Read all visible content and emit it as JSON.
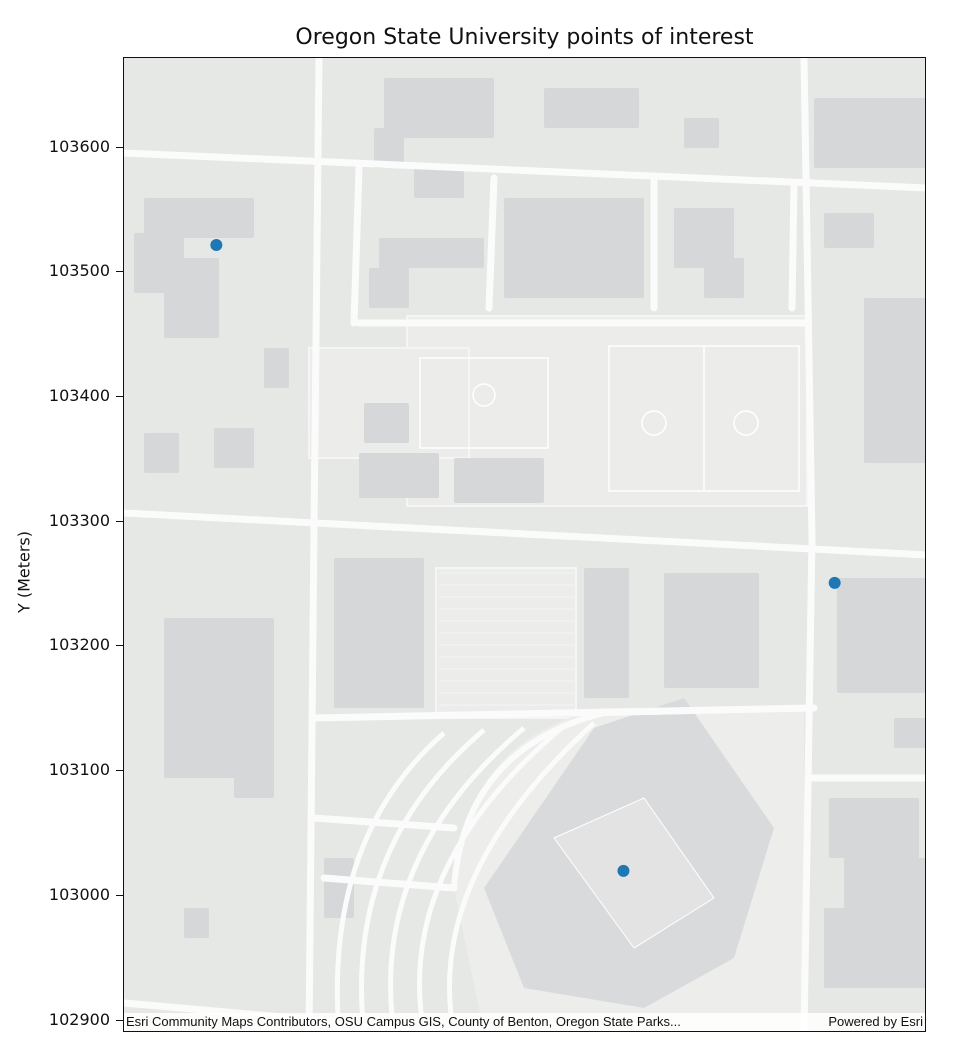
{
  "title": "Oregon State University points of interest",
  "ylabel": "Y (Meters)",
  "attribution": {
    "left": "Esri Community Maps Contributors, OSU Campus GIS, County of Benton, Oregon State Parks...",
    "right": "Powered by Esri"
  },
  "colors": {
    "land": "#e6e8e5",
    "road": "#fbfbfb",
    "building": "#d6d7d9",
    "field": "#ecedeb",
    "point": "#1f77b4"
  },
  "chart_data": {
    "type": "scatter",
    "title": "Oregon State University points of interest",
    "ylabel": "Y (Meters)",
    "xlabel": "",
    "yticks": [
      102900,
      103000,
      103100,
      103200,
      103300,
      103400,
      103500,
      103600
    ],
    "ylim": [
      102890,
      103672
    ],
    "points": [
      {
        "x_frac": 0.115,
        "y": 103522
      },
      {
        "x_frac": 0.885,
        "y": 103251
      },
      {
        "x_frac": 0.622,
        "y": 103020
      }
    ]
  }
}
